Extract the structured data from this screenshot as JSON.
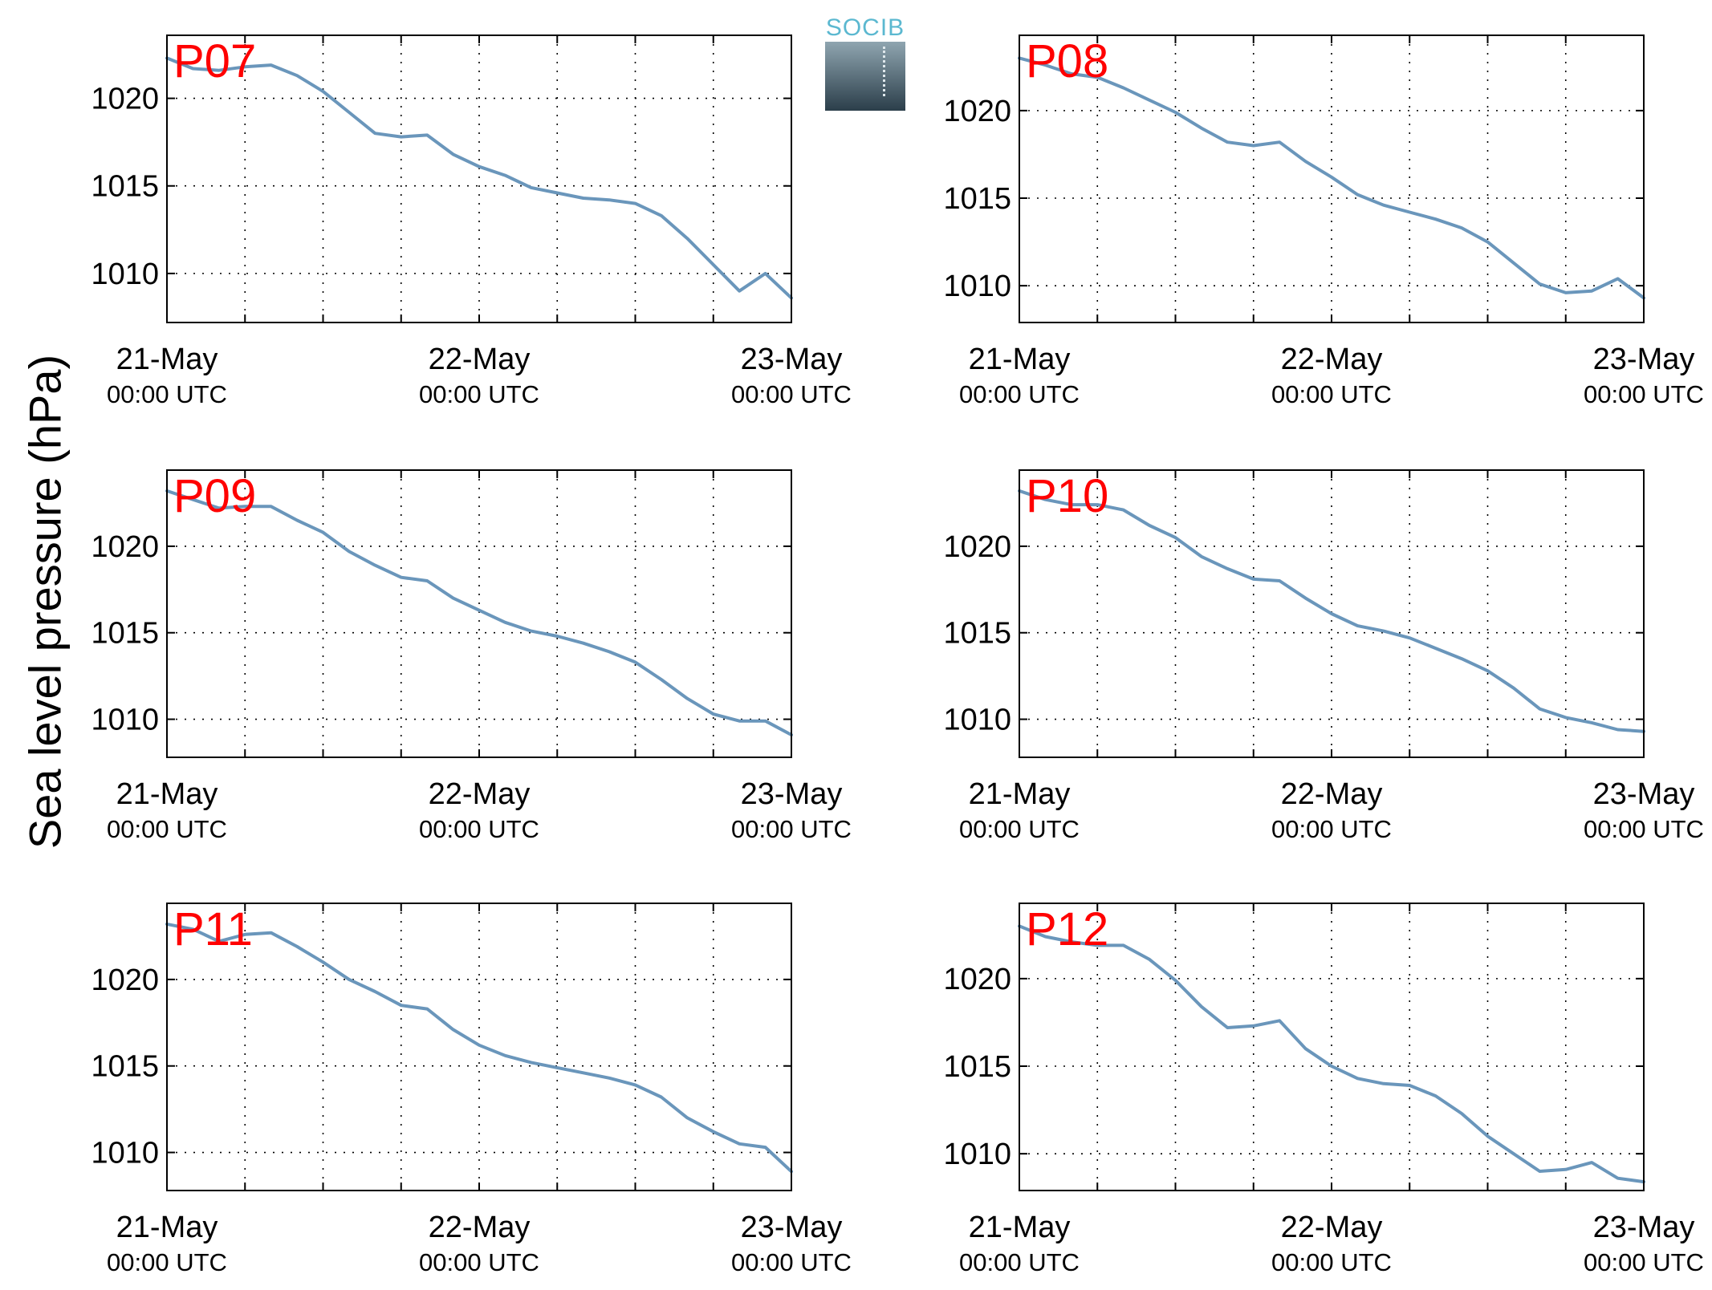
{
  "y_axis_label": "Sea level pressure (hPa)",
  "logo": {
    "name": "socib-logo",
    "text": "SOCIB",
    "text_color": "#5bb8d0"
  },
  "colors": {
    "series_line": "#6a96bb",
    "panel_label": "#ff0000",
    "axes": "#000000",
    "grid": "#000000"
  },
  "x_tick_labels": [
    {
      "date": "21-May",
      "time": "00:00 UTC"
    },
    {
      "date": "22-May",
      "time": "00:00 UTC"
    },
    {
      "date": "23-May",
      "time": "00:00 UTC"
    }
  ],
  "chart_data": [
    {
      "type": "line",
      "panel_label": "P07",
      "x_unit": "hours since 21-May 00:00 UTC",
      "x": [
        0,
        2,
        4,
        6,
        8,
        10,
        12,
        14,
        16,
        18,
        20,
        22,
        24,
        26,
        28,
        30,
        32,
        34,
        36,
        38,
        40,
        42,
        44,
        46,
        48
      ],
      "y": [
        1022.3,
        1021.7,
        1021.6,
        1021.8,
        1021.9,
        1021.3,
        1020.4,
        1019.2,
        1018.0,
        1017.8,
        1017.9,
        1016.8,
        1016.1,
        1015.6,
        1014.9,
        1014.6,
        1014.3,
        1014.2,
        1014.0,
        1013.3,
        1012.0,
        1010.5,
        1009.0,
        1010.0,
        1008.6
      ],
      "ylim": [
        1007.2,
        1023.6
      ],
      "yticks": [
        1010,
        1015,
        1020
      ],
      "xlim": [
        0,
        48
      ],
      "grid": true
    },
    {
      "type": "line",
      "panel_label": "P08",
      "x_unit": "hours since 21-May 00:00 UTC",
      "x": [
        0,
        2,
        4,
        6,
        8,
        10,
        12,
        14,
        16,
        18,
        20,
        22,
        24,
        26,
        28,
        30,
        32,
        34,
        36,
        38,
        40,
        42,
        44,
        46,
        48
      ],
      "y": [
        1023.0,
        1022.6,
        1022.1,
        1021.9,
        1021.3,
        1020.6,
        1019.9,
        1019.0,
        1018.2,
        1018.0,
        1018.2,
        1017.1,
        1016.2,
        1015.2,
        1014.6,
        1014.2,
        1013.8,
        1013.3,
        1012.5,
        1011.3,
        1010.1,
        1009.6,
        1009.7,
        1010.4,
        1009.3
      ],
      "ylim": [
        1007.9,
        1024.3
      ],
      "yticks": [
        1010,
        1015,
        1020
      ],
      "xlim": [
        0,
        48
      ],
      "grid": true
    },
    {
      "type": "line",
      "panel_label": "P09",
      "x_unit": "hours since 21-May 00:00 UTC",
      "x": [
        0,
        2,
        4,
        6,
        8,
        10,
        12,
        14,
        16,
        18,
        20,
        22,
        24,
        26,
        28,
        30,
        32,
        34,
        36,
        38,
        40,
        42,
        44,
        46,
        48
      ],
      "y": [
        1023.2,
        1022.7,
        1022.2,
        1022.3,
        1022.3,
        1021.5,
        1020.8,
        1019.7,
        1018.9,
        1018.2,
        1018.0,
        1017.0,
        1016.3,
        1015.6,
        1015.1,
        1014.8,
        1014.4,
        1013.9,
        1013.3,
        1012.3,
        1011.2,
        1010.3,
        1009.9,
        1009.9,
        1009.1
      ],
      "ylim": [
        1007.8,
        1024.4
      ],
      "yticks": [
        1010,
        1015,
        1020
      ],
      "xlim": [
        0,
        48
      ],
      "grid": true
    },
    {
      "type": "line",
      "panel_label": "P10",
      "x_unit": "hours since 21-May 00:00 UTC",
      "x": [
        0,
        2,
        4,
        6,
        8,
        10,
        12,
        14,
        16,
        18,
        20,
        22,
        24,
        26,
        28,
        30,
        32,
        34,
        36,
        38,
        40,
        42,
        44,
        46,
        48
      ],
      "y": [
        1023.2,
        1022.7,
        1022.4,
        1022.4,
        1022.1,
        1021.2,
        1020.5,
        1019.4,
        1018.7,
        1018.1,
        1018.0,
        1017.0,
        1016.1,
        1015.4,
        1015.1,
        1014.7,
        1014.1,
        1013.5,
        1012.8,
        1011.8,
        1010.6,
        1010.1,
        1009.8,
        1009.4,
        1009.3
      ],
      "ylim": [
        1007.8,
        1024.4
      ],
      "yticks": [
        1010,
        1015,
        1020
      ],
      "xlim": [
        0,
        48
      ],
      "grid": true
    },
    {
      "type": "line",
      "panel_label": "P11",
      "x_unit": "hours since 21-May 00:00 UTC",
      "x": [
        0,
        2,
        4,
        6,
        8,
        10,
        12,
        14,
        16,
        18,
        20,
        22,
        24,
        26,
        28,
        30,
        32,
        34,
        36,
        38,
        40,
        42,
        44,
        46,
        48
      ],
      "y": [
        1023.2,
        1022.9,
        1022.2,
        1022.6,
        1022.7,
        1021.9,
        1021.0,
        1020.0,
        1019.3,
        1018.5,
        1018.3,
        1017.1,
        1016.2,
        1015.6,
        1015.2,
        1014.9,
        1014.6,
        1014.3,
        1013.9,
        1013.2,
        1012.0,
        1011.2,
        1010.5,
        1010.3,
        1008.9
      ],
      "ylim": [
        1007.8,
        1024.4
      ],
      "yticks": [
        1010,
        1015,
        1020
      ],
      "xlim": [
        0,
        48
      ],
      "grid": true
    },
    {
      "type": "line",
      "panel_label": "P12",
      "x_unit": "hours since 21-May 00:00 UTC",
      "x": [
        0,
        2,
        4,
        6,
        8,
        10,
        12,
        14,
        16,
        18,
        20,
        22,
        24,
        26,
        28,
        30,
        32,
        34,
        36,
        38,
        40,
        42,
        44,
        46,
        48
      ],
      "y": [
        1023.0,
        1022.4,
        1022.1,
        1021.9,
        1021.9,
        1021.1,
        1019.9,
        1018.4,
        1017.2,
        1017.3,
        1017.6,
        1016.0,
        1015.0,
        1014.3,
        1014.0,
        1013.9,
        1013.3,
        1012.3,
        1011.0,
        1010.0,
        1009.0,
        1009.1,
        1009.5,
        1008.6,
        1008.4
      ],
      "ylim": [
        1007.9,
        1024.3
      ],
      "yticks": [
        1010,
        1015,
        1020
      ],
      "xlim": [
        0,
        48
      ],
      "grid": true
    }
  ]
}
